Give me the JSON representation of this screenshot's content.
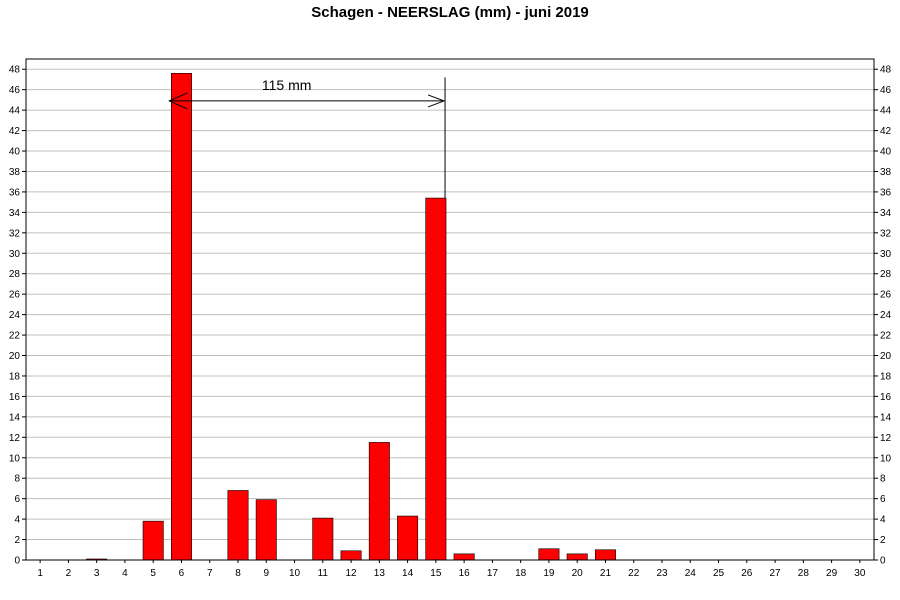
{
  "chart_data": {
    "type": "bar",
    "title": "Schagen  -  NEERSLAG (mm)  -  juni 2019",
    "xlabel": "",
    "ylabel": "",
    "categories": [
      "1",
      "2",
      "3",
      "4",
      "5",
      "6",
      "7",
      "8",
      "9",
      "10",
      "11",
      "12",
      "13",
      "14",
      "15",
      "16",
      "17",
      "18",
      "19",
      "20",
      "21",
      "22",
      "23",
      "24",
      "25",
      "26",
      "27",
      "28",
      "29",
      "30"
    ],
    "values": [
      0,
      0,
      0.1,
      0,
      3.8,
      47.6,
      0,
      6.8,
      5.9,
      0,
      4.1,
      0.9,
      11.5,
      4.3,
      35.4,
      0.6,
      0,
      0,
      1.1,
      0.6,
      1.0,
      0,
      0,
      0,
      0,
      0,
      0,
      0,
      0,
      0
    ],
    "ylim": [
      0,
      49
    ],
    "yticks": [
      0,
      2,
      4,
      6,
      8,
      10,
      12,
      14,
      16,
      18,
      20,
      22,
      24,
      26,
      28,
      30,
      32,
      34,
      36,
      38,
      40,
      42,
      44,
      46,
      48
    ],
    "grid": true,
    "legend": "none",
    "bar_color": "#ff0000",
    "secondary_y_axis": true,
    "annotation": {
      "text": "115 mm",
      "arrow_from_day": 6,
      "arrow_to_day": 15,
      "arrow_y": 44.9
    }
  }
}
